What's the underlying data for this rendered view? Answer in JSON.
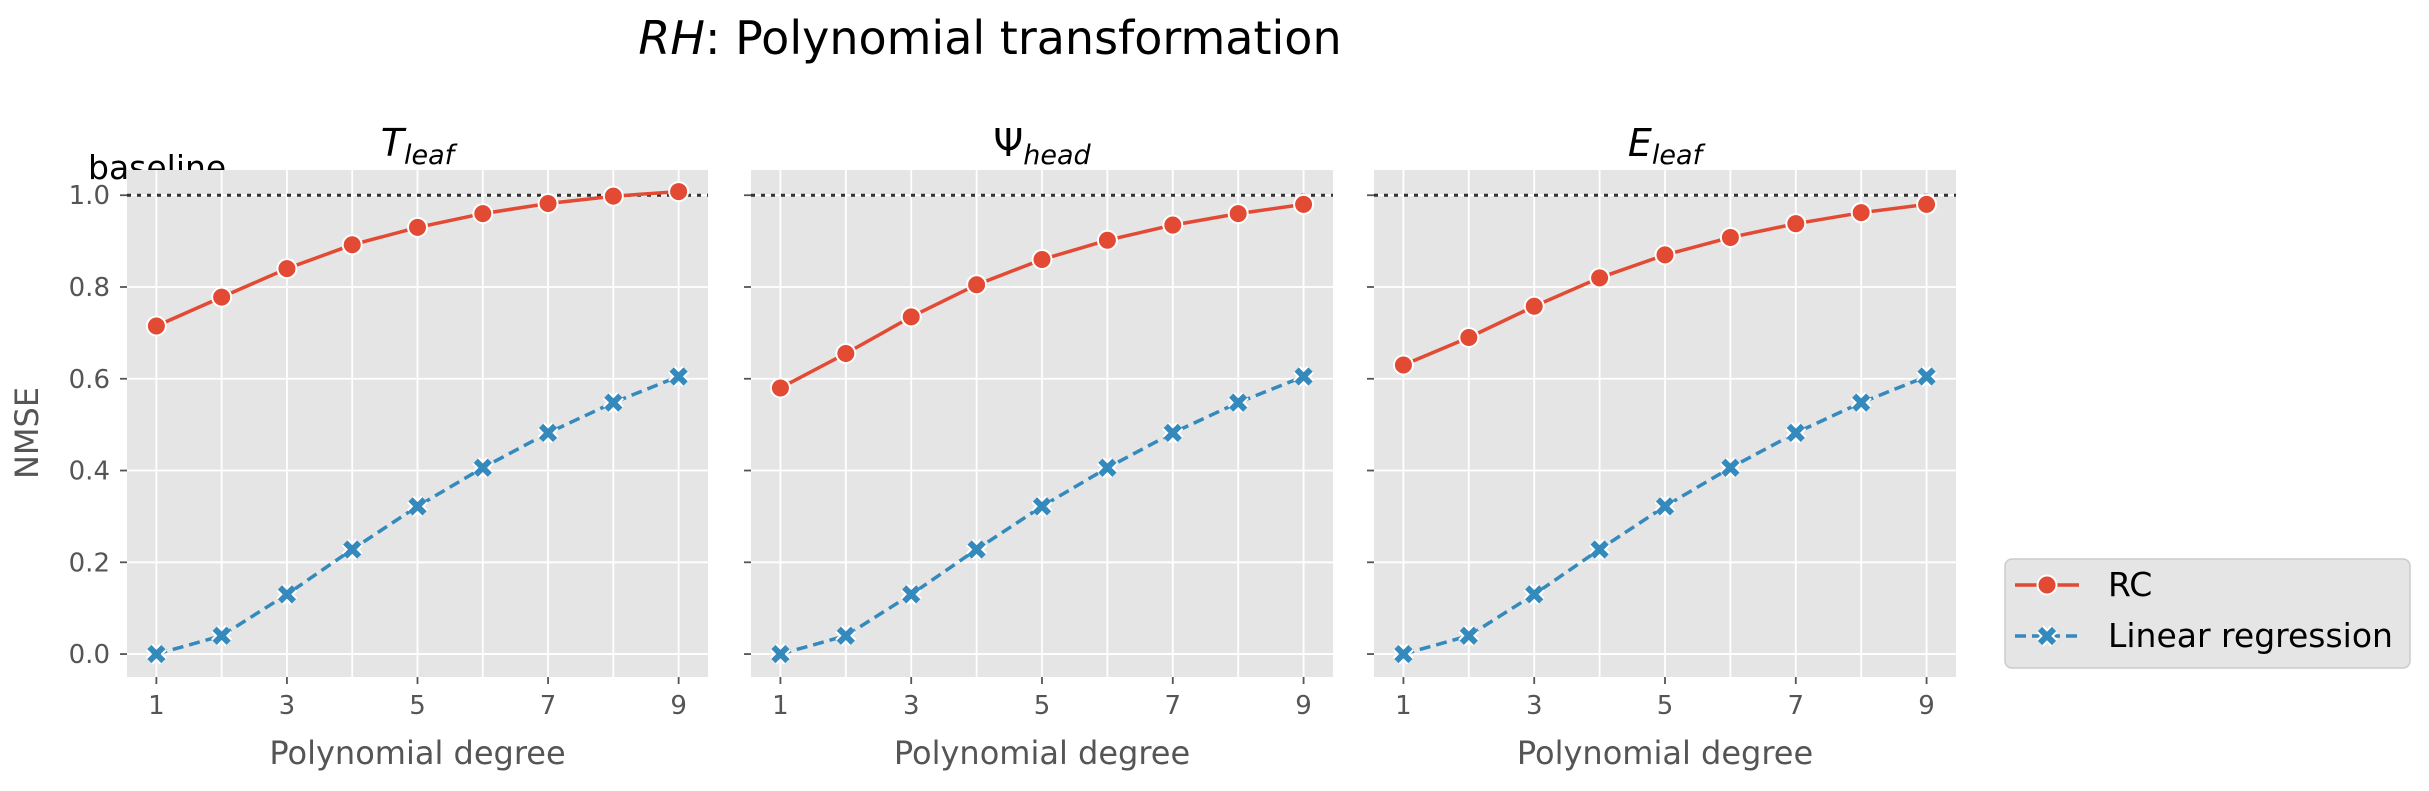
{
  "title": {
    "italic": "RH",
    "rest": ": Polynomial transformation"
  },
  "baseline_label": "baseline",
  "ylabel": "NMSE",
  "legend": [
    "RC",
    "Linear regression"
  ],
  "colors": {
    "rc": "#E24A33",
    "lr": "#348ABD",
    "panel": "#E5E5E5",
    "grid": "#FFFFFF",
    "baseline": "#333333",
    "tick_text": "#555555"
  },
  "chart_data": [
    {
      "type": "line",
      "title": {
        "base": "T",
        "sub": "leaf"
      },
      "xlabel": "Polynomial degree",
      "ylabel": "NMSE",
      "x": [
        1,
        2,
        3,
        4,
        5,
        6,
        7,
        8,
        9
      ],
      "xticks": [
        "1",
        "3",
        "5",
        "7",
        "9"
      ],
      "yticks": [
        "0.0",
        "0.2",
        "0.4",
        "0.6",
        "0.8",
        "1.0"
      ],
      "xlim": [
        0.55,
        9.45
      ],
      "ylim": [
        -0.05,
        1.055
      ],
      "baseline": 1.0,
      "series": [
        {
          "name": "RC",
          "values": [
            0.715,
            0.778,
            0.84,
            0.892,
            0.93,
            0.96,
            0.982,
            0.998,
            1.008
          ]
        },
        {
          "name": "Linear regression",
          "values": [
            0.0,
            0.04,
            0.13,
            0.228,
            0.322,
            0.406,
            0.482,
            0.548,
            0.605
          ]
        }
      ]
    },
    {
      "type": "line",
      "title": {
        "base": "Ψ",
        "sub": "head"
      },
      "xlabel": "Polynomial degree",
      "ylabel": "",
      "x": [
        1,
        2,
        3,
        4,
        5,
        6,
        7,
        8,
        9
      ],
      "xticks": [
        "1",
        "3",
        "5",
        "7",
        "9"
      ],
      "yticks": [
        "0.0",
        "0.2",
        "0.4",
        "0.6",
        "0.8",
        "1.0"
      ],
      "xlim": [
        0.55,
        9.45
      ],
      "ylim": [
        -0.05,
        1.055
      ],
      "baseline": 1.0,
      "series": [
        {
          "name": "RC",
          "values": [
            0.58,
            0.655,
            0.735,
            0.805,
            0.86,
            0.902,
            0.935,
            0.96,
            0.98
          ]
        },
        {
          "name": "Linear regression",
          "values": [
            0.0,
            0.04,
            0.13,
            0.228,
            0.322,
            0.406,
            0.482,
            0.548,
            0.605
          ]
        }
      ]
    },
    {
      "type": "line",
      "title": {
        "base": "E",
        "sub": "leaf"
      },
      "xlabel": "Polynomial degree",
      "ylabel": "",
      "x": [
        1,
        2,
        3,
        4,
        5,
        6,
        7,
        8,
        9
      ],
      "xticks": [
        "1",
        "3",
        "5",
        "7",
        "9"
      ],
      "yticks": [
        "0.0",
        "0.2",
        "0.4",
        "0.6",
        "0.8",
        "1.0"
      ],
      "xlim": [
        0.55,
        9.45
      ],
      "ylim": [
        -0.05,
        1.055
      ],
      "baseline": 1.0,
      "series": [
        {
          "name": "RC",
          "values": [
            0.63,
            0.69,
            0.758,
            0.82,
            0.87,
            0.908,
            0.938,
            0.962,
            0.98
          ]
        },
        {
          "name": "Linear regression",
          "values": [
            0.0,
            0.04,
            0.13,
            0.228,
            0.322,
            0.406,
            0.482,
            0.548,
            0.605
          ]
        }
      ]
    }
  ]
}
